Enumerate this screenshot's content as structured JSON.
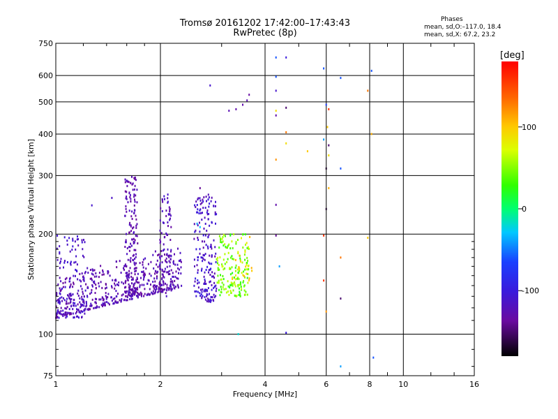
{
  "title": {
    "line1": "Tromsø 20161202 17:42:00–17:43:43",
    "line2": "RwPretec (8p)"
  },
  "stats": {
    "heading": "Phases",
    "o_mode": "mean, sd,O:–117.0, 18.4",
    "x_mode": "mean, sd,X:  67.2, 23.2"
  },
  "colors": {
    "background": "#ffffff",
    "axes": "#000000"
  },
  "chart_data": {
    "type": "scatter",
    "xlabel": "Frequency [MHz]",
    "ylabel": "Stationary phase Virtual Height [km]",
    "xscale": "log",
    "yscale": "log",
    "xlim": [
      1,
      16
    ],
    "ylim": [
      75,
      750
    ],
    "xticks": [
      1,
      2,
      4,
      6,
      8,
      10,
      16
    ],
    "xtick_labels": [
      "1",
      "2",
      "4",
      "6",
      "8",
      "10",
      "16"
    ],
    "yticks": [
      75,
      100,
      200,
      300,
      400,
      500,
      600,
      750
    ],
    "ytick_labels": [
      "75",
      "100",
      "200",
      "300",
      "400",
      "500",
      "600",
      "750"
    ],
    "colorbar": {
      "label": "[deg]",
      "range": [
        -180,
        180
      ],
      "ticks": [
        -100,
        0,
        100
      ],
      "tick_labels": [
        "-100",
        "0",
        "100"
      ]
    },
    "clusters": [
      {
        "name": "O-trace base",
        "f_range": [
          1.0,
          2.3
        ],
        "h_range": [
          112,
          150
        ],
        "n": 500,
        "phase": [
          -140,
          -110
        ],
        "slope": 0.24
      },
      {
        "name": "O-trace low spread",
        "f_range": [
          1.0,
          1.22
        ],
        "h_range": [
          112,
          200
        ],
        "n": 120,
        "phase": [
          -125,
          -100
        ],
        "slope": 0
      },
      {
        "name": "O-trace cusp 1.6",
        "f_range": [
          1.58,
          1.72
        ],
        "h_range": [
          130,
          300
        ],
        "n": 170,
        "phase": [
          -140,
          -115
        ],
        "slope": 0
      },
      {
        "name": "O-trace cusp 2.0",
        "f_range": [
          1.98,
          2.15
        ],
        "h_range": [
          130,
          260
        ],
        "n": 80,
        "phase": [
          -135,
          -110
        ],
        "slope": 0
      },
      {
        "name": "O-trace cusp 2.6",
        "f_range": [
          2.5,
          2.9
        ],
        "h_range": [
          125,
          265
        ],
        "n": 190,
        "phase": [
          -130,
          -95
        ],
        "slope": 0
      },
      {
        "name": "X-trace green",
        "f_range": [
          2.9,
          3.6
        ],
        "h_range": [
          130,
          200
        ],
        "n": 170,
        "phase": [
          20,
          70
        ],
        "slope": 0
      },
      {
        "name": "X-trace orange",
        "f_range": [
          3.2,
          3.7
        ],
        "h_range": [
          145,
          200
        ],
        "n": 25,
        "phase": [
          75,
          110
        ],
        "slope": 0
      }
    ],
    "points": [
      {
        "f": 2.78,
        "h": 560,
        "phase": -110
      },
      {
        "f": 3.15,
        "h": 470,
        "phase": -125
      },
      {
        "f": 3.3,
        "h": 475,
        "phase": -130
      },
      {
        "f": 3.45,
        "h": 490,
        "phase": -130
      },
      {
        "f": 3.55,
        "h": 505,
        "phase": -125
      },
      {
        "f": 3.6,
        "h": 525,
        "phase": -135
      },
      {
        "f": 2.6,
        "h": 275,
        "phase": -140
      },
      {
        "f": 2.1,
        "h": 263,
        "phase": -110
      },
      {
        "f": 2.05,
        "h": 260,
        "phase": -110
      },
      {
        "f": 1.27,
        "h": 244,
        "phase": -110
      },
      {
        "f": 1.45,
        "h": 257,
        "phase": -115
      },
      {
        "f": 3.35,
        "h": 100,
        "phase": -20
      },
      {
        "f": 4.3,
        "h": 680,
        "phase": -60
      },
      {
        "f": 4.6,
        "h": 680,
        "phase": -100
      },
      {
        "f": 4.3,
        "h": 595,
        "phase": -60
      },
      {
        "f": 4.3,
        "h": 540,
        "phase": -110
      },
      {
        "f": 4.3,
        "h": 470,
        "phase": 90
      },
      {
        "f": 4.3,
        "h": 455,
        "phase": -130
      },
      {
        "f": 4.6,
        "h": 480,
        "phase": -150
      },
      {
        "f": 4.6,
        "h": 405,
        "phase": 130
      },
      {
        "f": 4.6,
        "h": 375,
        "phase": 90
      },
      {
        "f": 4.3,
        "h": 335,
        "phase": 120
      },
      {
        "f": 4.3,
        "h": 245,
        "phase": -130
      },
      {
        "f": 4.3,
        "h": 198,
        "phase": -140
      },
      {
        "f": 4.4,
        "h": 160,
        "phase": -40
      },
      {
        "f": 4.6,
        "h": 101,
        "phase": -100
      },
      {
        "f": 5.3,
        "h": 355,
        "phase": 100
      },
      {
        "f": 5.9,
        "h": 630,
        "phase": -60
      },
      {
        "f": 6.0,
        "h": 490,
        "phase": -70
      },
      {
        "f": 6.1,
        "h": 475,
        "phase": 160
      },
      {
        "f": 6.05,
        "h": 420,
        "phase": 100
      },
      {
        "f": 5.9,
        "h": 385,
        "phase": -40
      },
      {
        "f": 6.1,
        "h": 370,
        "phase": -150
      },
      {
        "f": 6.1,
        "h": 345,
        "phase": 90
      },
      {
        "f": 6.0,
        "h": 315,
        "phase": -170
      },
      {
        "f": 6.1,
        "h": 275,
        "phase": 110
      },
      {
        "f": 6.0,
        "h": 238,
        "phase": -170
      },
      {
        "f": 5.9,
        "h": 198,
        "phase": 160
      },
      {
        "f": 5.9,
        "h": 145,
        "phase": 160
      },
      {
        "f": 6.0,
        "h": 117,
        "phase": 120
      },
      {
        "f": 6.6,
        "h": 590,
        "phase": -60
      },
      {
        "f": 6.6,
        "h": 315,
        "phase": -60
      },
      {
        "f": 6.6,
        "h": 170,
        "phase": 130
      },
      {
        "f": 6.6,
        "h": 128,
        "phase": -150
      },
      {
        "f": 6.6,
        "h": 80,
        "phase": -40
      },
      {
        "f": 7.9,
        "h": 540,
        "phase": 130
      },
      {
        "f": 7.9,
        "h": 195,
        "phase": 100
      },
      {
        "f": 8.1,
        "h": 620,
        "phase": -60
      },
      {
        "f": 8.1,
        "h": 400,
        "phase": 110
      },
      {
        "f": 8.2,
        "h": 85,
        "phase": -60
      },
      {
        "f": 2.6,
        "h": 210,
        "phase": -30
      },
      {
        "f": 2.55,
        "h": 215,
        "phase": -40
      }
    ]
  }
}
